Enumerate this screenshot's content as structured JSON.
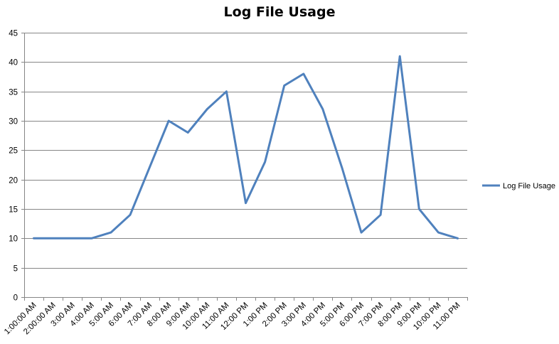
{
  "chart_data": {
    "type": "line",
    "title": "Log File Usage",
    "xlabel": "",
    "ylabel": "",
    "categories": [
      "1:00:00 AM",
      "2:00:00 AM",
      "3:00 AM",
      "4:00 AM",
      "5:00 AM",
      "6:00 AM",
      "7:00 AM",
      "8:00 AM",
      "9:00 AM",
      "10:00 AM",
      "11:00 AM",
      "12:00 PM",
      "1:00 PM",
      "2:00 PM",
      "3:00 PM",
      "4:00 PM",
      "5:00 PM",
      "6:00 PM",
      "7:00 PM",
      "8:00 PM",
      "9:00 PM",
      "10:00 PM",
      "11:00 PM"
    ],
    "series": [
      {
        "name": "Log File Usage",
        "color": "#4F81BD",
        "values": [
          10,
          10,
          10,
          10,
          11,
          14,
          22,
          30,
          28,
          32,
          35,
          16,
          23,
          36,
          38,
          32,
          22,
          11,
          14,
          41,
          15,
          11,
          10
        ]
      }
    ],
    "ylim": [
      0,
      45
    ],
    "yticks": [
      0,
      5,
      10,
      15,
      20,
      25,
      30,
      35,
      40,
      45
    ],
    "grid": true,
    "legend": "right",
    "colors": {
      "gridline": "#868686",
      "axis": "#868686"
    }
  }
}
